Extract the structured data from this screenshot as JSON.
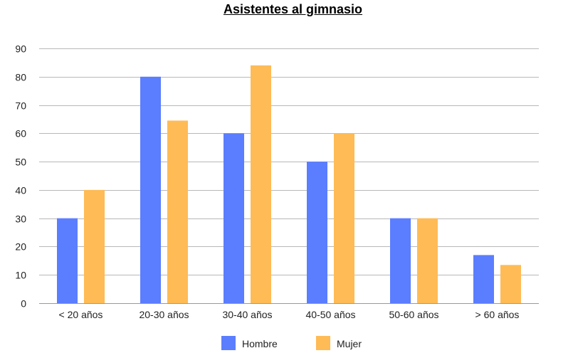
{
  "chart_data": {
    "type": "bar",
    "title": "Asistentes al gimnasio",
    "xlabel": "",
    "ylabel": "",
    "categories": [
      "< 20 años",
      "20-30 años",
      "30-40 años",
      "40-50 años",
      "50-60 años",
      "> 60 años"
    ],
    "series": [
      {
        "name": "Hombre",
        "color": "#5b7dff",
        "values": [
          30,
          80,
          60,
          50,
          30,
          17
        ]
      },
      {
        "name": "Mujer",
        "color": "#ffbb55",
        "values": [
          40,
          64.5,
          84,
          60,
          30,
          13.5
        ]
      }
    ],
    "ylim": [
      0,
      90
    ],
    "yticks": [
      0,
      10,
      20,
      30,
      40,
      50,
      60,
      70,
      80,
      90
    ],
    "grid": true,
    "legend": "bottom"
  }
}
